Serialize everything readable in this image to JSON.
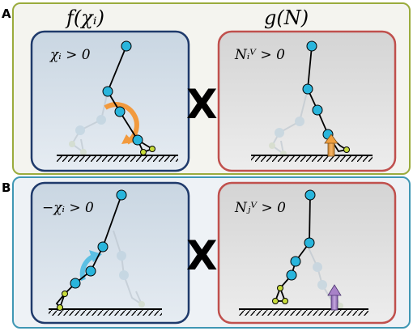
{
  "panels": [
    {
      "label": "A",
      "left_title": "f(χᵢ)",
      "right_title": "g(N)",
      "left_condition": "χᵢ > 0",
      "right_condition": "Nᵢⱽ > 0",
      "operator": "X"
    },
    {
      "label": "B",
      "left_condition": "−χᵢ > 0",
      "right_condition": "Nⱼⱽ > 0",
      "operator": "X"
    }
  ],
  "colors": {
    "panel_a_border": "#9aab3c",
    "panel_b_border": "#3f97b4",
    "left_box_border": "#1f3a6b",
    "right_box_border": "#c0504d",
    "joint": "#29b5dc",
    "foot_joint": "#c8dc3c",
    "torque_a": "#f29a3e",
    "torque_b": "#5cc0e4",
    "force_a": "#f0a040",
    "force_b": "#a882c8"
  }
}
